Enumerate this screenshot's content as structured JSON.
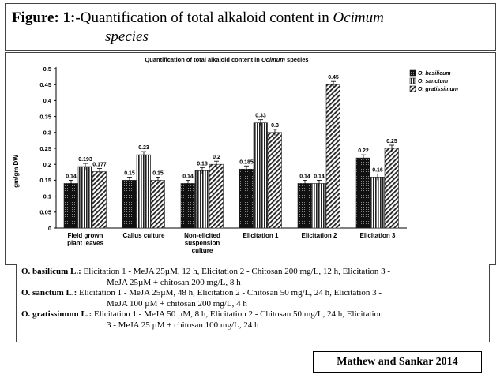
{
  "figure": {
    "label": "Figure: 1:-",
    "title_main": "Quantification of total alkaloid content in ",
    "title_genus_line1": "Ocimum",
    "title_line2": "species"
  },
  "chart_data": {
    "type": "bar",
    "title_prefix": "Quantification of total alkaloid content in ",
    "title_italic": "Ocimum",
    "title_suffix": " species",
    "ylabel": "gm/gm DW",
    "xlabel": "",
    "ylim": [
      0,
      0.5
    ],
    "yticks": [
      "0",
      "0.05",
      "0.1",
      "0.15",
      "0.2",
      "0.25",
      "0.3",
      "0.35",
      "0.4",
      "0.45",
      "0.5"
    ],
    "grid": false,
    "legend_position": "top-right",
    "categories": [
      [
        "Field grown",
        "plant leaves"
      ],
      [
        "Callus culture"
      ],
      [
        "Non-elicited",
        "suspension",
        "culture"
      ],
      [
        "Elicitation 1"
      ],
      [
        "Elicitation 2"
      ],
      [
        "Elicitation 3"
      ]
    ],
    "series": [
      {
        "name": "O. basilicum",
        "pattern": "checker",
        "values": [
          0.14,
          0.15,
          0.14,
          0.185,
          0.14,
          0.22
        ],
        "labels": [
          "0.14",
          "0.15",
          "0.14",
          "0.185",
          "0.14",
          "0.22"
        ]
      },
      {
        "name": "O. sanctum",
        "pattern": "vertical",
        "values": [
          0.193,
          0.23,
          0.18,
          0.33,
          0.14,
          0.16
        ],
        "labels": [
          "0.193",
          "0.23",
          "0.18",
          "0.33",
          "0.14",
          "0.16"
        ]
      },
      {
        "name": "O. gratissimum",
        "pattern": "diagonal",
        "values": [
          0.177,
          0.15,
          0.2,
          0.3,
          0.45,
          0.25
        ],
        "labels": [
          "0.177",
          "0.15",
          "0.2",
          "0.3",
          "0.45",
          "0.25"
        ]
      }
    ]
  },
  "notes": [
    {
      "species": "O. basilicum L.:",
      "line1": " Elicitation 1 - MeJA 25µM, 12 h, Elicitation 2 - Chitosan 200 mg/L, 12 h, Elicitation 3 -",
      "line2": "MeJA 25µM + chitosan 200 mg/L, 8 h"
    },
    {
      "species": "O. sanctum L.:",
      "line1": " Elicitation 1 - MeJA 25µM, 48 h, Elicitation 2 - Chitosan 50 mg/L, 24 h, Elicitation 3 -",
      "line2": "MeJA 100 µM + chitosan 200 mg/L, 4 h"
    },
    {
      "species": "O. gratissimum L.:",
      "line1": " Elicitation 1 - MeJA 50 µM, 8 h, Elicitation 2 - Chitosan 50 mg/L, 24 h, Elicitation",
      "line2": "3 - MeJA 25 µM + chitosan 100 mg/L, 24 h"
    }
  ],
  "citation": "Mathew and Sankar 2014"
}
